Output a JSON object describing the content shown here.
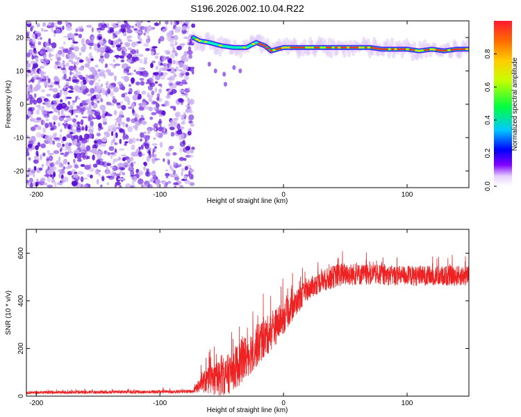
{
  "title": "S196.2026.002.10.04.R22",
  "colors": {
    "snr_line": "#ee2222",
    "scatter_dark": "#5b0fd6",
    "scatter_mid": "#8a4ae6",
    "scatter_light": "#c9aef2"
  },
  "chart_data": [
    {
      "type": "heatmap",
      "name": "spectrogram",
      "xlabel": "Height of straight line (km)",
      "ylabel": "Frequency (Hz)",
      "xlim": [
        -208,
        150
      ],
      "ylim": [
        -25,
        25
      ],
      "xticks": [
        -200,
        -100,
        0,
        100
      ],
      "xtick_labels": [
        "-200",
        "-100",
        "0",
        "100"
      ],
      "yticks": [
        20,
        10,
        0,
        -10,
        -20
      ],
      "ytick_labels": [
        "20",
        "10",
        "0",
        "-10",
        "-20"
      ],
      "noise_region_x": [
        -208,
        -73
      ],
      "ridge_points": [
        [
          -73,
          20
        ],
        [
          -68,
          19
        ],
        [
          -60,
          18.5
        ],
        [
          -55,
          18
        ],
        [
          -50,
          17.5
        ],
        [
          -40,
          17
        ],
        [
          -30,
          17
        ],
        [
          -22,
          18.5
        ],
        [
          -15,
          17.5
        ],
        [
          -10,
          16
        ],
        [
          0,
          17
        ],
        [
          10,
          17
        ],
        [
          20,
          17
        ],
        [
          30,
          17
        ],
        [
          40,
          17
        ],
        [
          50,
          17
        ],
        [
          60,
          17
        ],
        [
          70,
          17
        ],
        [
          80,
          16.5
        ],
        [
          90,
          16.5
        ],
        [
          100,
          16.5
        ],
        [
          110,
          16
        ],
        [
          120,
          16.5
        ],
        [
          130,
          16
        ],
        [
          140,
          16.5
        ],
        [
          150,
          16.5
        ]
      ]
    },
    {
      "type": "colorbar",
      "name": "amplitude-colorbar",
      "label": "Normalized spectral amplitude",
      "range": [
        0,
        1
      ],
      "ticks": [
        0.0,
        0.2,
        0.4,
        0.6,
        0.8
      ],
      "tick_labels": [
        "0.0",
        "0.2",
        "0.4",
        "0.6",
        "0.8"
      ]
    },
    {
      "type": "line",
      "name": "snr-plot",
      "xlabel": "Height of straight line (km)",
      "ylabel": "SNR (10 * v/v)",
      "xlim": [
        -208,
        150
      ],
      "ylim": [
        0,
        700
      ],
      "xticks": [
        -200,
        -100,
        0,
        100
      ],
      "xtick_labels": [
        "-200",
        "-100",
        "0",
        "100"
      ],
      "yticks": [
        0,
        200,
        400,
        600
      ],
      "ytick_labels": [
        "0",
        "200",
        "400",
        "600"
      ],
      "envelope": [
        {
          "x": -208,
          "base": 15,
          "amp": 12
        },
        {
          "x": -100,
          "base": 18,
          "amp": 14
        },
        {
          "x": -73,
          "base": 20,
          "amp": 15
        },
        {
          "x": -65,
          "base": 60,
          "amp": 90
        },
        {
          "x": -55,
          "base": 70,
          "amp": 140
        },
        {
          "x": -45,
          "base": 90,
          "amp": 170
        },
        {
          "x": -35,
          "base": 140,
          "amp": 190
        },
        {
          "x": -20,
          "base": 220,
          "amp": 180
        },
        {
          "x": -10,
          "base": 270,
          "amp": 160
        },
        {
          "x": 0,
          "base": 330,
          "amp": 140
        },
        {
          "x": 10,
          "base": 390,
          "amp": 110
        },
        {
          "x": 20,
          "base": 450,
          "amp": 90
        },
        {
          "x": 30,
          "base": 480,
          "amp": 90
        },
        {
          "x": 45,
          "base": 510,
          "amp": 100
        },
        {
          "x": 70,
          "base": 510,
          "amp": 85
        },
        {
          "x": 100,
          "base": 505,
          "amp": 85
        },
        {
          "x": 130,
          "base": 505,
          "amp": 85
        },
        {
          "x": 150,
          "base": 505,
          "amp": 85
        }
      ]
    }
  ]
}
